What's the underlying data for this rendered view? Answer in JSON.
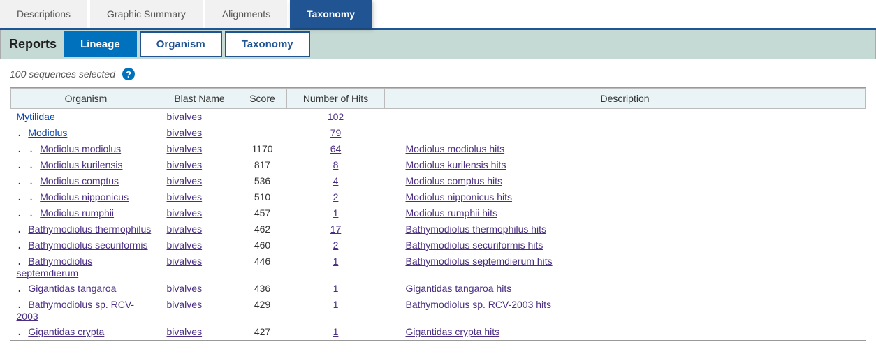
{
  "tabs": [
    {
      "label": "Descriptions",
      "active": false
    },
    {
      "label": "Graphic Summary",
      "active": false
    },
    {
      "label": "Alignments",
      "active": false
    },
    {
      "label": "Taxonomy",
      "active": true
    }
  ],
  "reports": {
    "label": "Reports",
    "subtabs": [
      {
        "label": "Lineage",
        "active": true
      },
      {
        "label": "Organism",
        "active": false
      },
      {
        "label": "Taxonomy",
        "active": false
      }
    ]
  },
  "status": "100 sequences selected",
  "columns": [
    "Organism",
    "Blast Name",
    "Score",
    "Number of Hits",
    "Description"
  ],
  "rows": [
    {
      "indent": 0,
      "organism": "Mytilidae",
      "org_color": "blue",
      "blast": "bivalves",
      "score": "",
      "hits": "102",
      "desc": ""
    },
    {
      "indent": 1,
      "organism": "Modiolus",
      "org_color": "blue",
      "blast": "bivalves",
      "score": "",
      "hits": "79",
      "desc": ""
    },
    {
      "indent": 2,
      "organism": "Modiolus modiolus",
      "blast": "bivalves",
      "score": "1170",
      "hits": "64",
      "desc": "Modiolus modiolus hits"
    },
    {
      "indent": 2,
      "organism": "Modiolus kurilensis",
      "blast": "bivalves",
      "score": "817",
      "hits": "8",
      "desc": "Modiolus kurilensis hits"
    },
    {
      "indent": 2,
      "organism": "Modiolus comptus",
      "blast": "bivalves",
      "score": "536",
      "hits": "4",
      "desc": "Modiolus comptus hits"
    },
    {
      "indent": 2,
      "organism": "Modiolus nipponicus",
      "blast": "bivalves",
      "score": "510",
      "hits": "2",
      "desc": "Modiolus nipponicus hits"
    },
    {
      "indent": 2,
      "organism": "Modiolus rumphii",
      "blast": "bivalves",
      "score": "457",
      "hits": "1",
      "desc": "Modiolus rumphii hits"
    },
    {
      "indent": 1,
      "organism": "Bathymodiolus thermophilus",
      "blast": "bivalves",
      "score": "462",
      "hits": "17",
      "desc": "Bathymodiolus thermophilus hits"
    },
    {
      "indent": 1,
      "organism": "Bathymodiolus securiformis",
      "blast": "bivalves",
      "score": "460",
      "hits": "2",
      "desc": "Bathymodiolus securiformis hits"
    },
    {
      "indent": 1,
      "organism": "Bathymodiolus septemdierum",
      "blast": "bivalves",
      "score": "446",
      "hits": "1",
      "desc": "Bathymodiolus septemdierum hits"
    },
    {
      "indent": 1,
      "organism": "Gigantidas tangaroa",
      "blast": "bivalves",
      "score": "436",
      "hits": "1",
      "desc": "Gigantidas tangaroa hits"
    },
    {
      "indent": 1,
      "organism": "Bathymodiolus sp. RCV-2003",
      "blast": "bivalves",
      "score": "429",
      "hits": "1",
      "desc": "Bathymodiolus sp. RCV-2003 hits"
    },
    {
      "indent": 1,
      "organism": "Gigantidas crypta",
      "blast": "bivalves",
      "score": "427",
      "hits": "1",
      "desc": "Gigantidas crypta hits"
    }
  ],
  "colors": {
    "tab_bg": "#f1f1f1",
    "tab_active_bg": "#205493",
    "subtab_active_bg": "#0071bc",
    "reports_bg": "#c5d9d5",
    "header_bg": "#eaf3f6",
    "link_visited": "#4b2e83",
    "link_blue": "#0645ad"
  }
}
